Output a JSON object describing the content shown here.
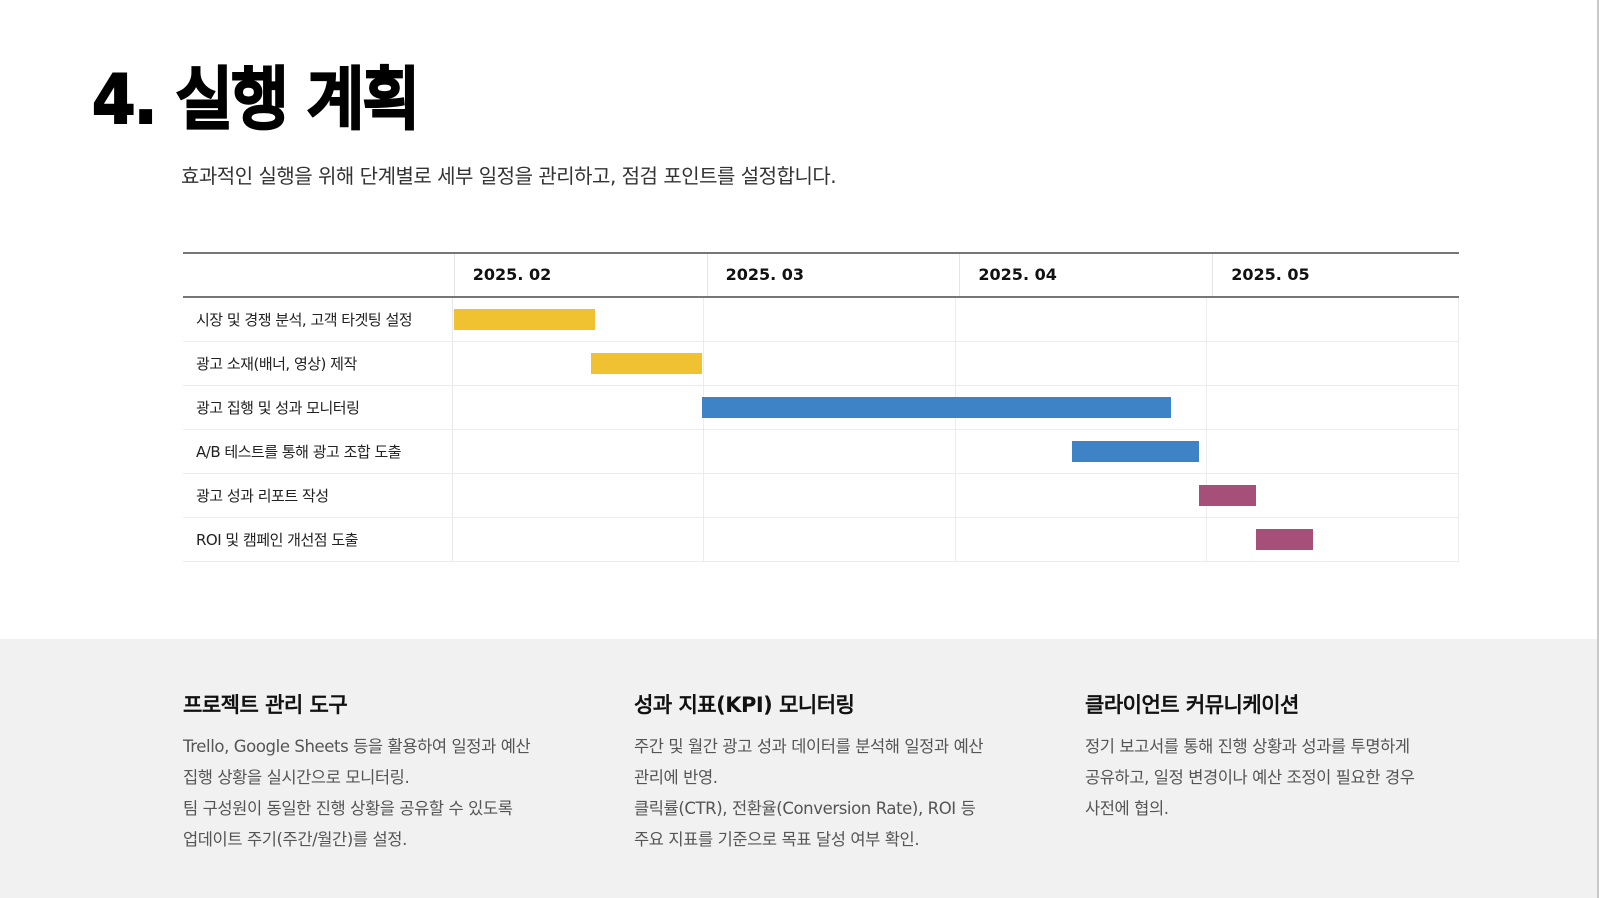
{
  "header": {
    "title": "4. 실행 계획",
    "subtitle": "효과적인 실행을 위해 단계별로 세부 일정을 관리하고, 점검 포인트를 설정합니다."
  },
  "gantt": {
    "months": [
      "2025. 02",
      "2025. 03",
      "2025. 04",
      "2025. 05"
    ],
    "tasks": [
      {
        "label": "시장 및 경쟁 분석, 고객 타겟팅 설정",
        "color": "#F0C232"
      },
      {
        "label": "광고 소재(배너, 영상) 제작",
        "color": "#F0C232"
      },
      {
        "label": "광고 집행 및 성과 모니터링",
        "color": "#3E83C5"
      },
      {
        "label": "A/B 테스트를 통해 광고 조합 도출",
        "color": "#3E83C5"
      },
      {
        "label": "광고 성과 리포트 작성",
        "color": "#A64F79"
      },
      {
        "label": "ROI 및 캠페인 개선점 도출",
        "color": "#A64F79"
      }
    ]
  },
  "chart_data": {
    "type": "gantt",
    "title": "",
    "categories": [
      "2025. 02",
      "2025. 03",
      "2025. 04",
      "2025. 05"
    ],
    "tasks": [
      {
        "name": "시장 및 경쟁 분석, 고객 타겟팅 설정",
        "start_month": 0.0,
        "end_month": 0.57,
        "color": "#F0C232"
      },
      {
        "name": "광고 소재(배너, 영상) 제작",
        "start_month": 0.55,
        "end_month": 1.0,
        "color": "#F0C232"
      },
      {
        "name": "광고 집행 및 성과 모니터링",
        "start_month": 1.0,
        "end_month": 2.89,
        "color": "#3E83C5"
      },
      {
        "name": "A/B 테스트를 통해 광고 조합 도출",
        "start_month": 2.49,
        "end_month": 3.0,
        "color": "#3E83C5"
      },
      {
        "name": "광고 성과 리포트 작성",
        "start_month": 3.0,
        "end_month": 3.23,
        "color": "#A64F79"
      },
      {
        "name": "ROI 및 캠페인 개선점 도출",
        "start_month": 3.23,
        "end_month": 3.46,
        "color": "#A64F79"
      }
    ]
  },
  "info": [
    {
      "title": "프로젝트 관리 도구",
      "lines": [
        "Trello, Google Sheets 등을 활용하여 일정과 예산",
        "집행 상황을 실시간으로 모니터링.",
        "팀 구성원이 동일한 진행 상황을 공유할 수 있도록",
        "업데이트 주기(주간/월간)를 설정."
      ]
    },
    {
      "title": "성과 지표(KPI) 모니터링",
      "lines": [
        "주간 및 월간 광고 성과 데이터를 분석해 일정과 예산",
        "관리에 반영.",
        "클릭률(CTR), 전환율(Conversion Rate), ROI 등",
        "주요 지표를 기준으로 목표 달성 여부 확인."
      ]
    },
    {
      "title": "클라이언트 커뮤니케이션",
      "lines": [
        "정기 보고서를 통해 진행 상황과 성과를 투명하게",
        "공유하고, 일정 변경이나 예산 조정이 필요한 경우",
        "사전에 협의."
      ]
    }
  ]
}
